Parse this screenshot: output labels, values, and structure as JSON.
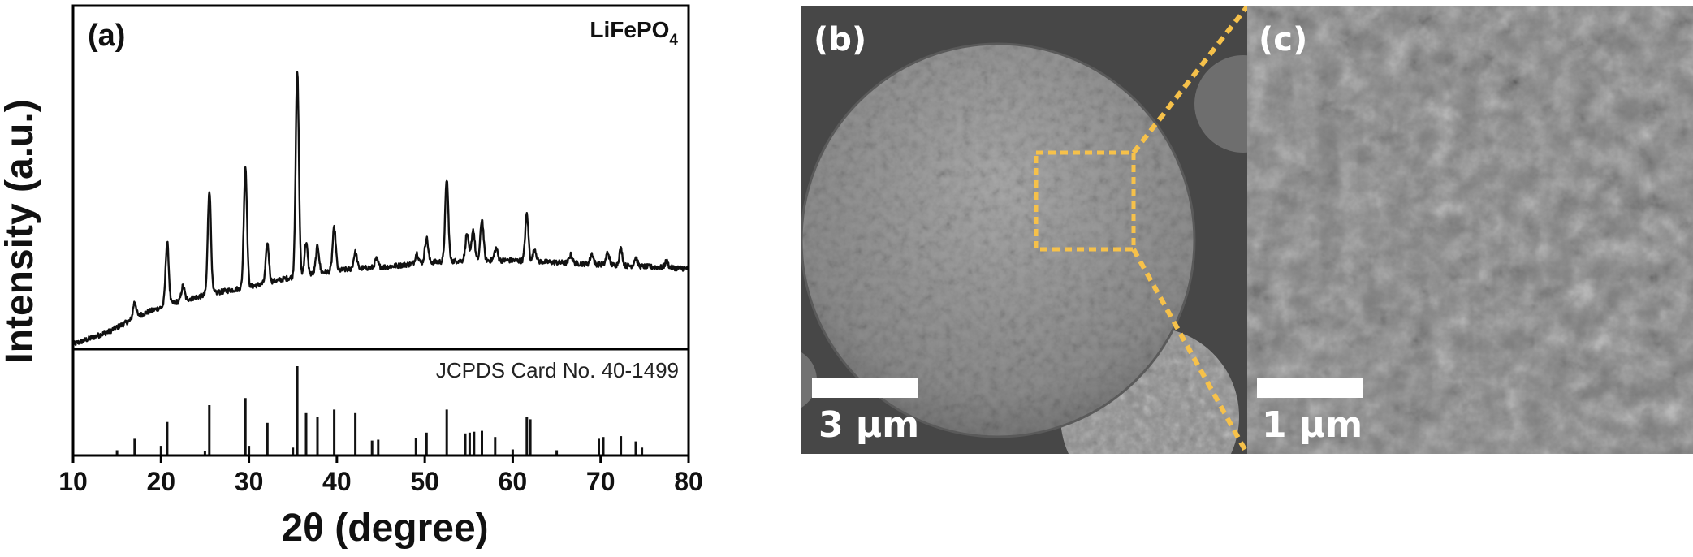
{
  "chart_data": {
    "type": "line",
    "panel_label": "(a)",
    "ylabel": "Intensity (a.u.)",
    "xlabel": "2θ (degree)",
    "xlim": [
      10,
      80
    ],
    "xticks": [
      10,
      20,
      30,
      40,
      50,
      60,
      70,
      80
    ],
    "sample_label": {
      "main": "LiFePO",
      "sub": "4"
    },
    "reference_label": "JCPDS Card No. 40-1499",
    "grid": false,
    "series": [
      {
        "kind": "measured-pattern",
        "baseline": [
          [
            10,
            0.0
          ],
          [
            14,
            0.06
          ],
          [
            18,
            0.15
          ],
          [
            22,
            0.21
          ],
          [
            26,
            0.25
          ],
          [
            30,
            0.28
          ],
          [
            34,
            0.32
          ],
          [
            38,
            0.35
          ],
          [
            42,
            0.37
          ],
          [
            46,
            0.38
          ],
          [
            50,
            0.4
          ],
          [
            55,
            0.41
          ],
          [
            60,
            0.41
          ],
          [
            65,
            0.4
          ],
          [
            70,
            0.39
          ],
          [
            75,
            0.38
          ],
          [
            80,
            0.37
          ]
        ],
        "peaks": [
          [
            17.0,
            0.08
          ],
          [
            20.7,
            0.31
          ],
          [
            22.5,
            0.07
          ],
          [
            25.5,
            0.51
          ],
          [
            29.6,
            0.59
          ],
          [
            32.1,
            0.19
          ],
          [
            35.5,
            1.0
          ],
          [
            36.5,
            0.16
          ],
          [
            37.8,
            0.13
          ],
          [
            39.7,
            0.21
          ],
          [
            42.1,
            0.08
          ],
          [
            44.5,
            0.04
          ],
          [
            49.1,
            0.05
          ],
          [
            50.2,
            0.12
          ],
          [
            52.5,
            0.4
          ],
          [
            54.8,
            0.13
          ],
          [
            55.5,
            0.15
          ],
          [
            56.5,
            0.2
          ],
          [
            58.1,
            0.06
          ],
          [
            61.6,
            0.23
          ],
          [
            62.5,
            0.06
          ],
          [
            66.6,
            0.04
          ],
          [
            69.0,
            0.05
          ],
          [
            70.8,
            0.06
          ],
          [
            72.3,
            0.08
          ],
          [
            74.0,
            0.04
          ],
          [
            77.5,
            0.03
          ]
        ]
      },
      {
        "kind": "reference-sticks",
        "values": [
          [
            15.0,
            0.05
          ],
          [
            17.0,
            0.18
          ],
          [
            20.0,
            0.1
          ],
          [
            20.7,
            0.37
          ],
          [
            25.0,
            0.04
          ],
          [
            25.5,
            0.56
          ],
          [
            29.6,
            0.64
          ],
          [
            30.0,
            0.1
          ],
          [
            32.1,
            0.36
          ],
          [
            35.0,
            0.08
          ],
          [
            35.5,
            1.0
          ],
          [
            36.5,
            0.47
          ],
          [
            37.8,
            0.43
          ],
          [
            39.7,
            0.51
          ],
          [
            42.1,
            0.47
          ],
          [
            44.0,
            0.16
          ],
          [
            44.7,
            0.17
          ],
          [
            49.0,
            0.19
          ],
          [
            50.2,
            0.25
          ],
          [
            52.5,
            0.51
          ],
          [
            54.6,
            0.24
          ],
          [
            55.1,
            0.25
          ],
          [
            55.6,
            0.26
          ],
          [
            56.5,
            0.27
          ],
          [
            58.0,
            0.2
          ],
          [
            60.0,
            0.06
          ],
          [
            61.6,
            0.43
          ],
          [
            62.0,
            0.4
          ],
          [
            65.0,
            0.05
          ],
          [
            69.8,
            0.18
          ],
          [
            70.3,
            0.2
          ],
          [
            72.3,
            0.21
          ],
          [
            74.0,
            0.15
          ],
          [
            74.7,
            0.08
          ]
        ]
      }
    ]
  },
  "sem_b": {
    "label": "(b)",
    "scale": "3 μm"
  },
  "sem_c": {
    "label": "(c)",
    "scale": "1 μm"
  },
  "colors": {
    "zoom_box": "#f6c14a",
    "line": "#111111"
  }
}
